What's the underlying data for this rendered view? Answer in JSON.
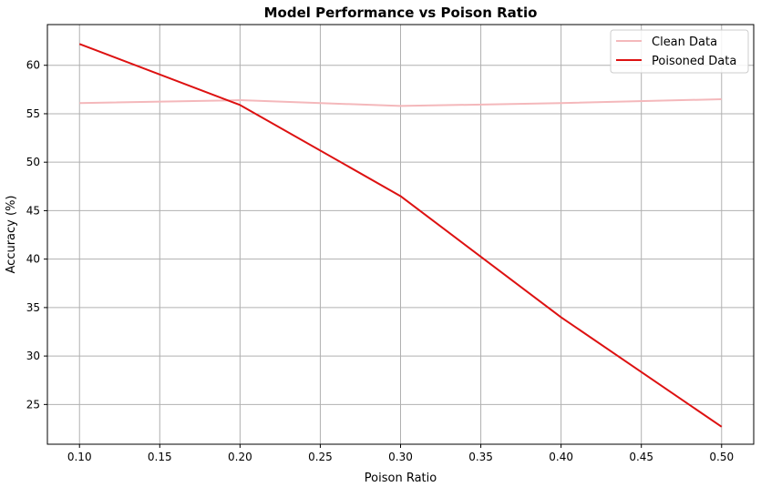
{
  "chart_data": {
    "type": "line",
    "title": "Model Performance vs Poison Ratio",
    "xlabel": "Poison Ratio",
    "ylabel": "Accuracy (%)",
    "xlim": [
      0.08,
      0.52
    ],
    "ylim": [
      20.9,
      64.2
    ],
    "x": [
      0.1,
      0.2,
      0.3,
      0.4,
      0.5
    ],
    "xticks": [
      "0.10",
      "0.15",
      "0.20",
      "0.25",
      "0.30",
      "0.35",
      "0.40",
      "0.45",
      "0.50"
    ],
    "yticks": [
      "25",
      "30",
      "35",
      "40",
      "45",
      "50",
      "55",
      "60"
    ],
    "grid": true,
    "legend_position": "top-right",
    "series": [
      {
        "name": "Clean Data",
        "color": "#f4b8bb",
        "values": [
          56.1,
          56.4,
          55.8,
          56.1,
          56.5
        ]
      },
      {
        "name": "Poisoned Data",
        "color": "#dd1111",
        "values": [
          62.2,
          55.9,
          46.5,
          34.0,
          22.7
        ]
      }
    ]
  }
}
